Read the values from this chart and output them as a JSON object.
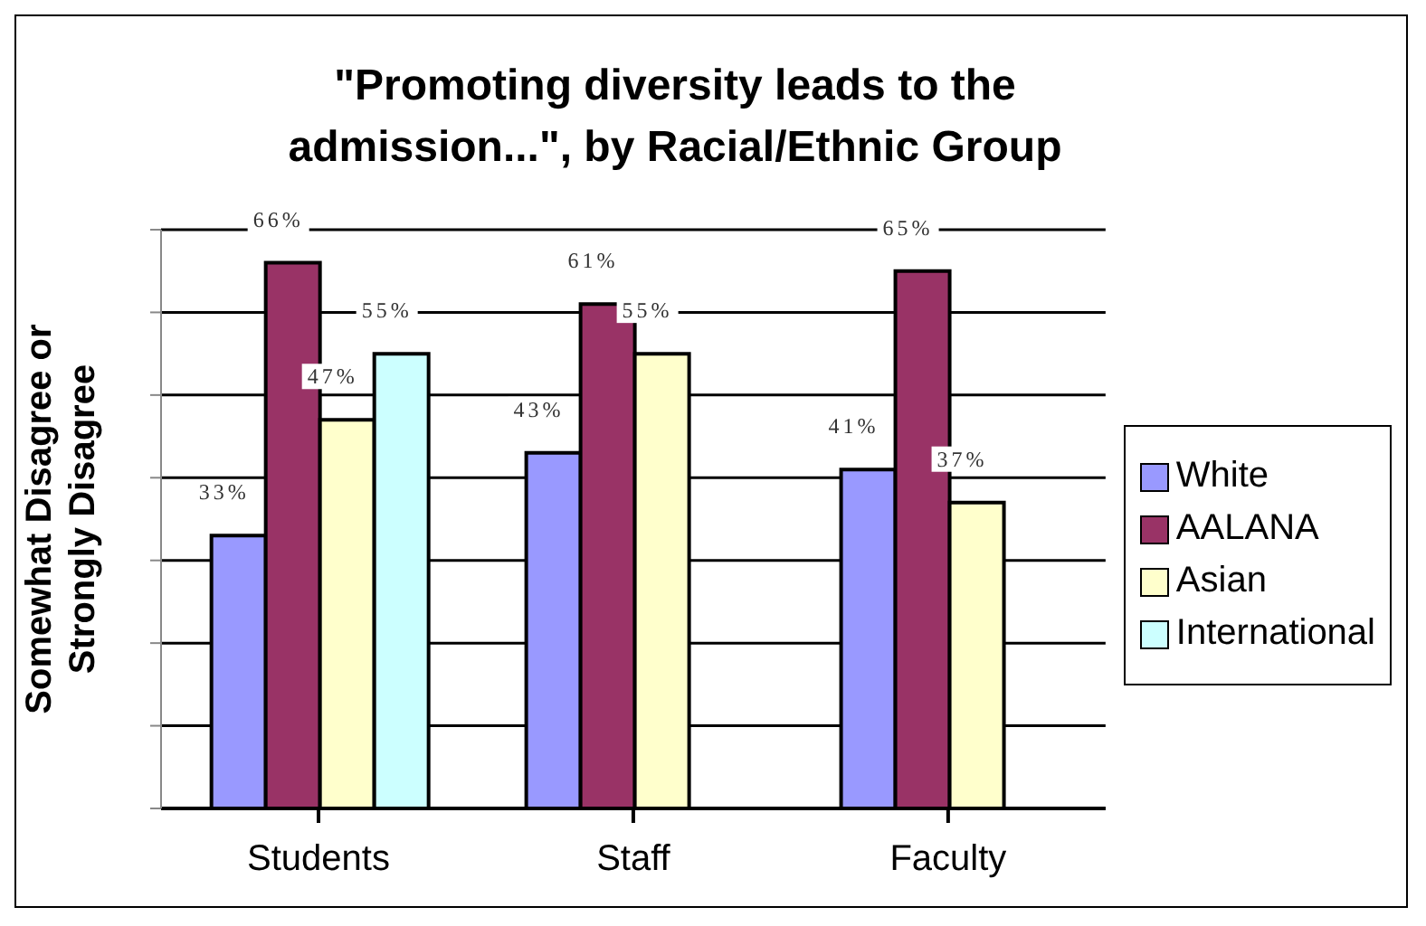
{
  "chart_data": {
    "type": "bar",
    "title": "\"Promoting diversity leads to the admission...\", by Racial/Ethnic Group",
    "ylabel": "Somewhat Disagree or\nStrongly Disagree",
    "categories": [
      "Students",
      "Staff",
      "Faculty"
    ],
    "series": [
      {
        "name": "White",
        "color": "#9999ff",
        "values": [
          33,
          43,
          41
        ],
        "value_labels": [
          "33%",
          "43%",
          "41%"
        ]
      },
      {
        "name": "AALANA",
        "color": "#993366",
        "values": [
          66,
          61,
          65
        ],
        "value_labels": [
          "66%",
          "61%",
          "65%"
        ]
      },
      {
        "name": "Asian",
        "color": "#ffffcc",
        "values": [
          47,
          55,
          37
        ],
        "value_labels": [
          "47%",
          "55%",
          "37%"
        ]
      },
      {
        "name": "International",
        "color": "#ccffff",
        "values": [
          55,
          null,
          null
        ],
        "value_labels": [
          "55%",
          null,
          null
        ]
      }
    ],
    "ylim": [
      0,
      70
    ],
    "tick_labels": "x",
    "grid": "y",
    "legend": "right"
  }
}
